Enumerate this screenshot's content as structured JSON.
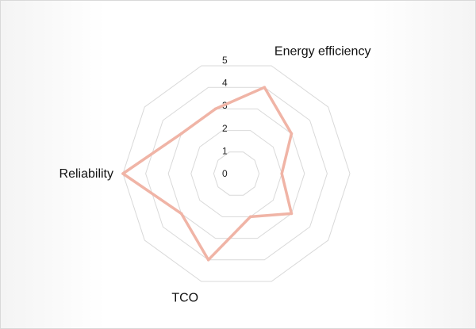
{
  "chart_data": {
    "type": "radar",
    "title": "",
    "categories": [
      "Energy efficiency",
      "",
      "",
      "",
      "",
      "TCO",
      "",
      "Reliability",
      "",
      ""
    ],
    "series": [
      {
        "name": "",
        "color": "#f0b4a6",
        "values": [
          4,
          3,
          2,
          3,
          2,
          4,
          3,
          5,
          3,
          3
        ]
      }
    ],
    "rlim": [
      0,
      5
    ],
    "ticks": [
      0,
      1,
      2,
      3,
      4,
      5
    ],
    "grid": true,
    "legend": "none"
  }
}
